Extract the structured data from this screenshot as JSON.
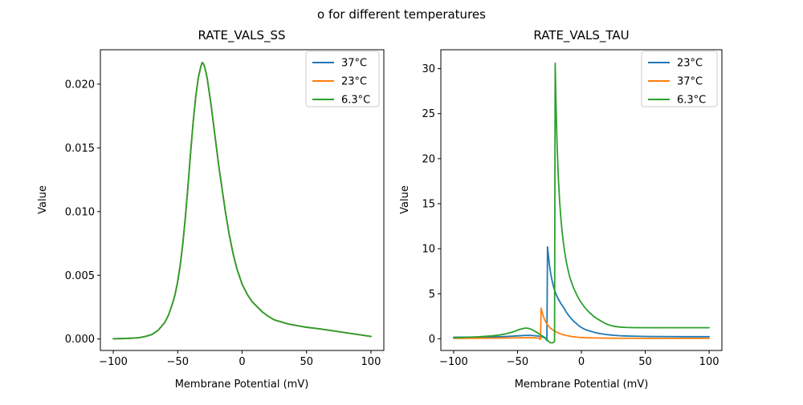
{
  "figure": {
    "suptitle": "o for different temperatures",
    "background": "#ffffff"
  },
  "colors": {
    "blue": "#1f77b4",
    "orange": "#ff7f0e",
    "green": "#2ca02c",
    "legend_edge": "#cccccc",
    "spine": "#000000"
  },
  "chart_data": [
    {
      "type": "line",
      "title": "RATE_VALS_SS",
      "xlabel": "Membrane Potential (mV)",
      "ylabel": "Value",
      "xlim": [
        -110,
        110
      ],
      "ylim": [
        -0.0009,
        0.0227
      ],
      "xtick_values": [
        -100,
        -50,
        0,
        50,
        100
      ],
      "xtick_labels": [
        "−100",
        "−50",
        "0",
        "50",
        "100"
      ],
      "ytick_values": [
        0,
        0.005,
        0.01,
        0.015,
        0.02
      ],
      "ytick_labels": [
        "0.000",
        "0.005",
        "0.010",
        "0.015",
        "0.020"
      ],
      "grid": false,
      "legend_position": "upper right",
      "note": "All three temperature curves overlap exactly; only the last-drawn green (6.3°C) curve is visible. Bell-shaped steady-state curve peaking ~0.0217 near -31 mV.",
      "series": [
        {
          "name": "37°C",
          "color": "#1f77b4",
          "uses_shared_points": true
        },
        {
          "name": "23°C",
          "color": "#ff7f0e",
          "uses_shared_points": true
        },
        {
          "name": "6.3°C",
          "color": "#2ca02c",
          "uses_shared_points": true
        }
      ],
      "shared_points": {
        "x": [
          -100,
          -90,
          -80,
          -75,
          -70,
          -65,
          -60,
          -57,
          -54,
          -52,
          -50,
          -48,
          -46,
          -44,
          -42,
          -40,
          -38,
          -36,
          -34,
          -32,
          -31,
          -30,
          -29,
          -28,
          -27,
          -26,
          -25,
          -24,
          -23,
          -22,
          -21,
          -20,
          -19,
          -18,
          -17,
          -16,
          -15,
          -14,
          -13,
          -12,
          -11,
          -10,
          -9,
          -8,
          -7,
          -6,
          -5,
          -4,
          -3,
          -2,
          -1,
          0,
          2,
          4,
          6,
          8,
          10,
          13,
          16,
          20,
          25,
          30,
          35,
          40,
          50,
          60,
          70,
          80,
          90,
          100
        ],
        "y": [
          2e-05,
          4e-05,
          0.0001,
          0.0002,
          0.00035,
          0.0007,
          0.0013,
          0.0019,
          0.0028,
          0.0035,
          0.0045,
          0.0058,
          0.0075,
          0.0096,
          0.012,
          0.0146,
          0.017,
          0.019,
          0.0205,
          0.0214,
          0.0217,
          0.0216,
          0.0213,
          0.0209,
          0.0204,
          0.0197,
          0.019,
          0.0183,
          0.0175,
          0.0167,
          0.0159,
          0.0151,
          0.0143,
          0.0135,
          0.0128,
          0.0121,
          0.0114,
          0.0107,
          0.01,
          0.0094,
          0.0088,
          0.0082,
          0.0077,
          0.0072,
          0.0067,
          0.0063,
          0.0059,
          0.0055,
          0.0052,
          0.0049,
          0.0046,
          0.0043,
          0.0039,
          0.0035,
          0.0032,
          0.0029,
          0.0027,
          0.0024,
          0.0021,
          0.0018,
          0.0015,
          0.00135,
          0.0012,
          0.0011,
          0.00092,
          0.0008,
          0.00065,
          0.0005,
          0.00035,
          0.0002
        ]
      }
    },
    {
      "type": "line",
      "title": "RATE_VALS_TAU",
      "xlabel": "Membrane Potential (mV)",
      "ylabel": "Value",
      "xlim": [
        -110,
        110
      ],
      "ylim": [
        -1.3,
        32.1
      ],
      "xtick_values": [
        -100,
        -50,
        0,
        50,
        100
      ],
      "xtick_labels": [
        "−100",
        "−50",
        "0",
        "50",
        "100"
      ],
      "ytick_values": [
        0,
        5,
        10,
        15,
        20,
        25,
        30
      ],
      "ytick_labels": [
        "0",
        "5",
        "10",
        "15",
        "20",
        "25",
        "30"
      ],
      "grid": false,
      "legend_position": "upper right",
      "note": "Time-constant curves with a near-vertical resonance spike: blue 23°C peaks ~10.2 at -26.5 mV, orange 37°C peaks ~3.4 at -31.5 mV, green 6.3°C peaks ~30.6 at -20.5 mV, each dipping slightly below 0 just before its spike.",
      "series": [
        {
          "name": "23°C",
          "color": "#1f77b4",
          "points": {
            "x": [
              -100,
              -90,
              -80,
              -70,
              -60,
              -55,
              -50,
              -46,
              -42,
              -38,
              -34,
              -31,
              -29,
              -28,
              -27.5,
              -27,
              -26.5,
              -26,
              -25,
              -24,
              -23,
              -22,
              -21,
              -20,
              -18,
              -16,
              -14,
              -12,
              -10,
              -8,
              -6,
              -4,
              -2,
              0,
              2,
              4,
              6,
              8,
              10,
              12,
              15,
              18,
              20,
              25,
              30,
              35,
              40,
              50,
              60,
              80,
              100
            ],
            "y": [
              0.17,
              0.18,
              0.19,
              0.21,
              0.25,
              0.28,
              0.32,
              0.36,
              0.38,
              0.36,
              0.3,
              0.22,
              0.12,
              0.02,
              -0.12,
              -0.18,
              10.2,
              9.5,
              8.2,
              7.2,
              6.5,
              5.9,
              5.4,
              5.0,
              4.4,
              3.9,
              3.5,
              3.0,
              2.6,
              2.25,
              1.95,
              1.7,
              1.45,
              1.25,
              1.1,
              0.97,
              0.88,
              0.8,
              0.72,
              0.65,
              0.56,
              0.5,
              0.46,
              0.39,
              0.34,
              0.31,
              0.29,
              0.26,
              0.25,
              0.23,
              0.23
            ]
          }
        },
        {
          "name": "37°C",
          "color": "#ff7f0e",
          "points": {
            "x": [
              -100,
              -90,
              -80,
              -70,
              -60,
              -55,
              -50,
              -46,
              -42,
              -38,
              -35,
              -33,
              -32.5,
              -32,
              -31.5,
              -31,
              -30,
              -29,
              -28,
              -27,
              -26,
              -25,
              -24,
              -23,
              -22,
              -21,
              -20,
              -18,
              -16,
              -14,
              -12,
              -10,
              -8,
              -6,
              -4,
              -2,
              0,
              3,
              6,
              10,
              15,
              20,
              30,
              50,
              100
            ],
            "y": [
              0.05,
              0.055,
              0.06,
              0.07,
              0.08,
              0.09,
              0.1,
              0.11,
              0.115,
              0.11,
              0.09,
              0.05,
              -0.04,
              -0.06,
              3.4,
              3.1,
              2.6,
              2.2,
              1.9,
              1.65,
              1.45,
              1.3,
              1.15,
              1.05,
              0.95,
              0.85,
              0.78,
              0.64,
              0.53,
              0.44,
              0.37,
              0.31,
              0.26,
              0.22,
              0.19,
              0.16,
              0.14,
              0.12,
              0.11,
              0.09,
              0.08,
              0.07,
              0.06,
              0.05,
              0.045
            ]
          }
        },
        {
          "name": "6.3°C",
          "color": "#2ca02c",
          "points": {
            "x": [
              -100,
              -90,
              -80,
              -70,
              -65,
              -60,
              -55,
              -52,
              -50,
              -48,
              -46,
              -44,
              -42,
              -40,
              -38,
              -36,
              -34,
              -32,
              -30,
              -28,
              -26,
              -25,
              -24,
              -23,
              -22,
              -21,
              -20.5,
              -20,
              -19,
              -18,
              -17,
              -16,
              -15,
              -14,
              -13,
              -12,
              -11,
              -10,
              -9,
              -8,
              -7,
              -6,
              -5,
              -4,
              -3,
              -2,
              -1,
              0,
              2,
              4,
              6,
              8,
              10,
              12,
              15,
              18,
              20,
              22,
              25,
              30,
              35,
              40,
              50,
              60,
              80,
              100
            ],
            "y": [
              0.12,
              0.16,
              0.22,
              0.32,
              0.4,
              0.52,
              0.7,
              0.84,
              0.95,
              1.05,
              1.13,
              1.18,
              1.17,
              1.1,
              0.97,
              0.8,
              0.62,
              0.44,
              0.26,
              0.08,
              -0.25,
              -0.38,
              -0.44,
              -0.46,
              -0.42,
              -0.3,
              30.6,
              27.0,
              21.5,
              17.8,
              15.2,
              13.3,
              11.8,
              10.6,
              9.6,
              8.7,
              8.0,
              7.4,
              6.8,
              6.4,
              6.0,
              5.6,
              5.3,
              5.0,
              4.7,
              4.45,
              4.2,
              4.0,
              3.6,
              3.25,
              2.95,
              2.7,
              2.45,
              2.25,
              2.0,
              1.75,
              1.62,
              1.52,
              1.4,
              1.3,
              1.26,
              1.24,
              1.23,
              1.23,
              1.23,
              1.23
            ]
          }
        }
      ]
    }
  ]
}
